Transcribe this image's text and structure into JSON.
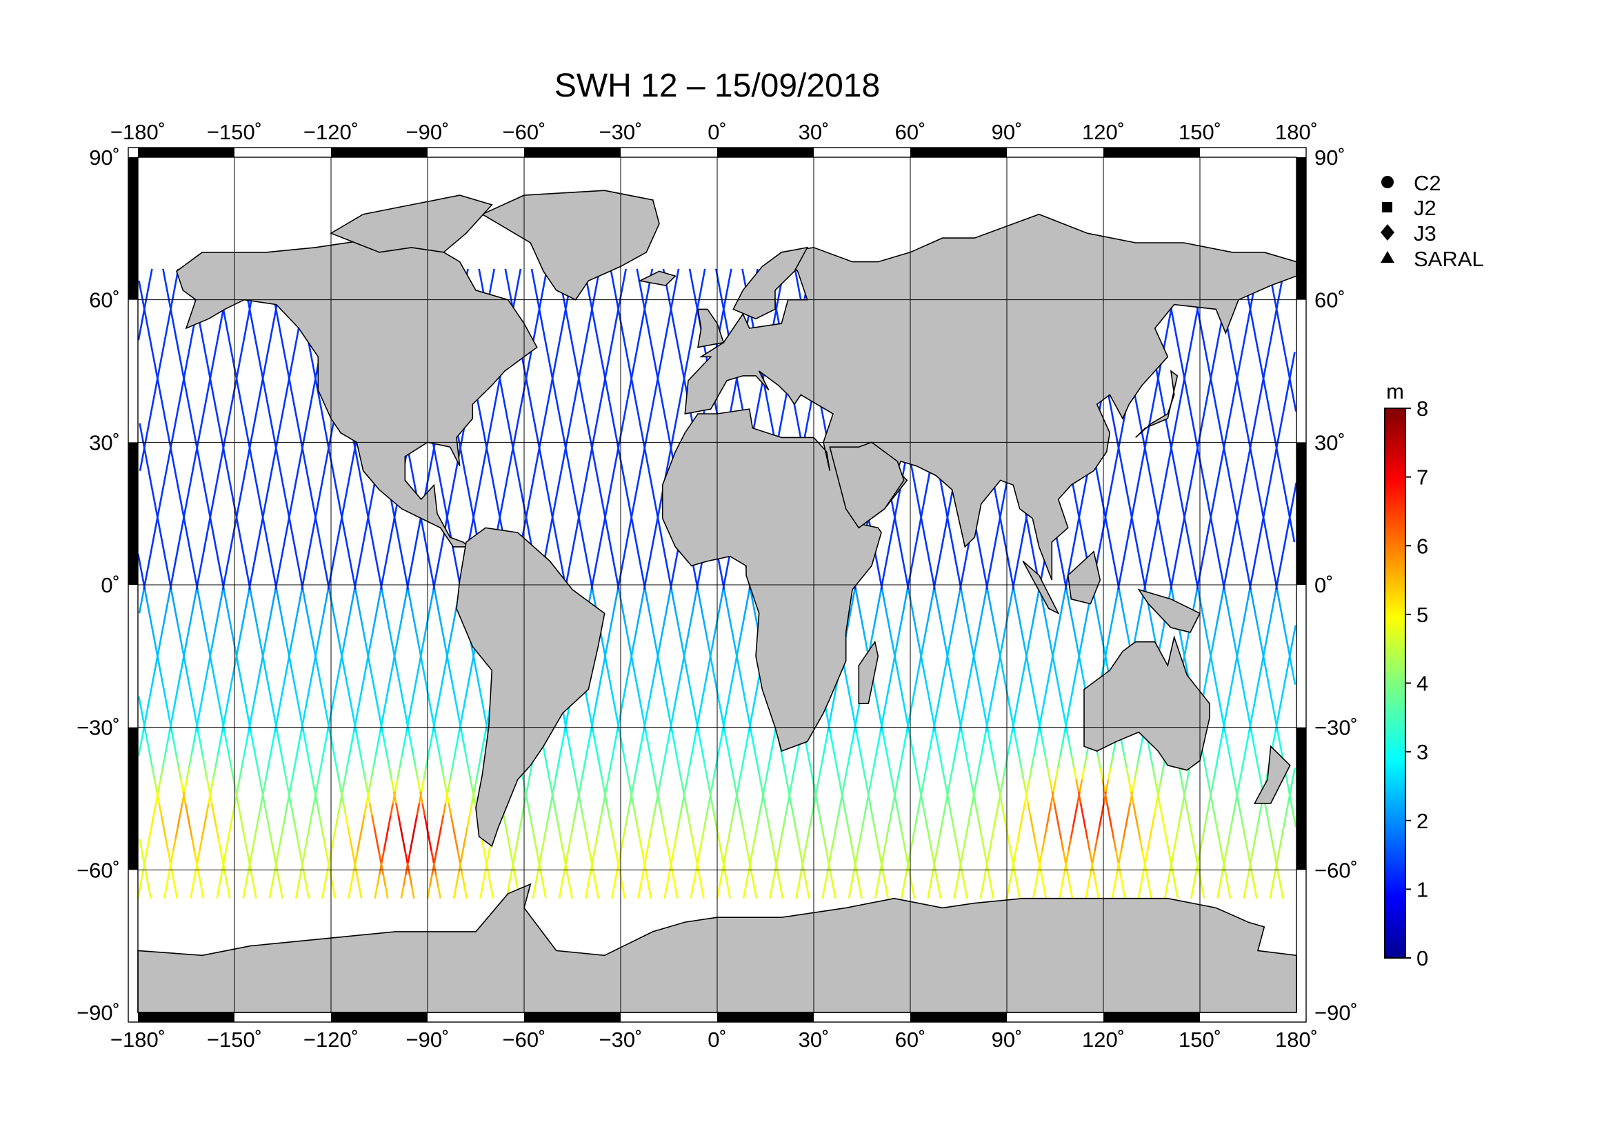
{
  "title": "SWH 12 – 15/09/2018",
  "map": {
    "projection": "equirectangular",
    "lon_range": [
      -180,
      180
    ],
    "lat_range": [
      -90,
      90
    ],
    "lon_ticks": [
      -180,
      -150,
      -120,
      -90,
      -60,
      -30,
      0,
      30,
      60,
      90,
      120,
      150,
      180
    ],
    "lat_ticks": [
      90,
      60,
      30,
      0,
      -30,
      -60,
      -90
    ],
    "lon_tick_labels": [
      "−180˚",
      "−150˚",
      "−120˚",
      "−90˚",
      "−60˚",
      "−30˚",
      "0˚",
      "30˚",
      "60˚",
      "90˚",
      "120˚",
      "150˚",
      "180˚"
    ],
    "lat_tick_labels": [
      "90˚",
      "60˚",
      "30˚",
      "0˚",
      "−30˚",
      "−60˚",
      "−90˚"
    ],
    "grid": true,
    "land_color": "#bebebe",
    "ocean_color": "#ffffff"
  },
  "legend": {
    "placement": "top-right",
    "items": [
      {
        "marker": "circle",
        "label": "C2"
      },
      {
        "marker": "square",
        "label": "J2"
      },
      {
        "marker": "diamond",
        "label": "J3"
      },
      {
        "marker": "triangle",
        "label": "SARAL"
      }
    ]
  },
  "colorbar": {
    "unit": "m",
    "min": 0,
    "max": 8,
    "tick_labels": [
      "8",
      "7",
      "6",
      "5",
      "4",
      "3",
      "2",
      "1",
      "0"
    ],
    "colormap": "jet"
  },
  "chart_data": {
    "type": "scatter",
    "title": "SWH 12 – 15/09/2018",
    "variable": "significant wave height",
    "unit": "m",
    "xlim": [
      -180,
      180
    ],
    "ylim": [
      -90,
      90
    ],
    "series_names": [
      "C2",
      "J2",
      "J3",
      "SARAL"
    ],
    "region_values": [
      {
        "lon_range": [
          -180,
          180
        ],
        "lat_range": [
          0,
          66
        ],
        "swh_m": 1.5
      },
      {
        "lon_range": [
          -180,
          180
        ],
        "lat_range": [
          -30,
          0
        ],
        "swh_m": 2.2
      },
      {
        "lon_range": [
          -180,
          -60
        ],
        "lat_range": [
          -66,
          -30
        ],
        "swh_m": 4.5
      },
      {
        "lon_range": [
          -110,
          -70
        ],
        "lat_range": [
          -66,
          -45
        ],
        "swh_m": 6.8
      },
      {
        "lon_range": [
          100,
          140
        ],
        "lat_range": [
          -60,
          -38
        ],
        "swh_m": 6.5
      },
      {
        "lon_range": [
          -60,
          100
        ],
        "lat_range": [
          -66,
          -35
        ],
        "swh_m": 3.0
      }
    ]
  }
}
